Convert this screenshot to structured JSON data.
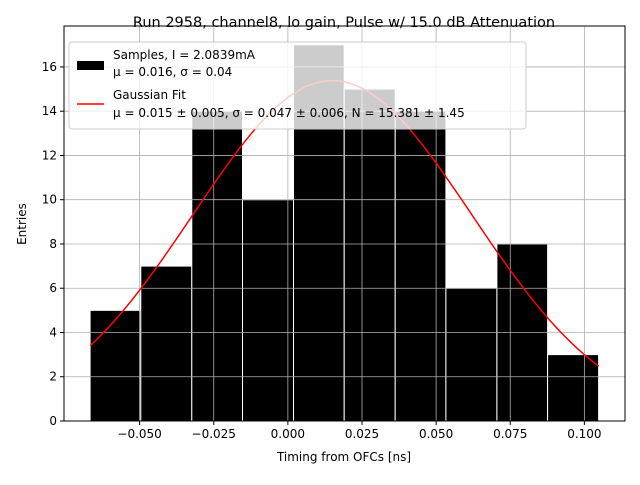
{
  "chart_data": {
    "type": "bar",
    "title": "Run 2958, channel8, lo gain, Pulse w/ 15.0 dB Attenuation",
    "xlabel": "Timing from OFCs [ns]",
    "ylabel": "Entries",
    "xlim": [
      -0.0755,
      0.1137
    ],
    "ylim": [
      0,
      17.85
    ],
    "grid": true,
    "x_ticks": [
      -0.05,
      -0.025,
      0.0,
      0.025,
      0.05,
      0.075,
      0.1
    ],
    "x_tick_labels": [
      "−0.050",
      "−0.025",
      "0.000",
      "0.025",
      "0.050",
      "0.075",
      "0.100"
    ],
    "y_ticks": [
      0,
      2,
      4,
      6,
      8,
      10,
      12,
      14,
      16
    ],
    "y_tick_labels": [
      "0",
      "2",
      "4",
      "6",
      "8",
      "10",
      "12",
      "14",
      "16"
    ],
    "bin_edges": [
      -0.0667,
      -0.0496,
      -0.0324,
      -0.0153,
      0.0019,
      0.019,
      0.0362,
      0.0533,
      0.0705,
      0.0876,
      0.1048
    ],
    "values": [
      5,
      7,
      14,
      10,
      17,
      15,
      14,
      6,
      8,
      3
    ],
    "series": [
      {
        "name": "Samples, I = 2.0839mA",
        "type": "bar",
        "color": "#000000",
        "stats": "μ = 0.016, σ = 0.04"
      },
      {
        "name": "Gaussian Fit",
        "type": "line",
        "color": "#ff0000",
        "stats": "μ = 0.015 ± 0.005, σ = 0.047 ± 0.006, N = 15.381 ± 1.45",
        "mu": 0.015,
        "sigma": 0.047,
        "amplitude": 15.381,
        "x_range": [
          -0.0667,
          0.1048
        ]
      }
    ],
    "legend_position": "upper-left",
    "colors": {
      "bar_fill": "#000000",
      "bar_edge": "#ffffff",
      "fit_line": "#ff0000",
      "grid": "#b0b0b0"
    }
  }
}
